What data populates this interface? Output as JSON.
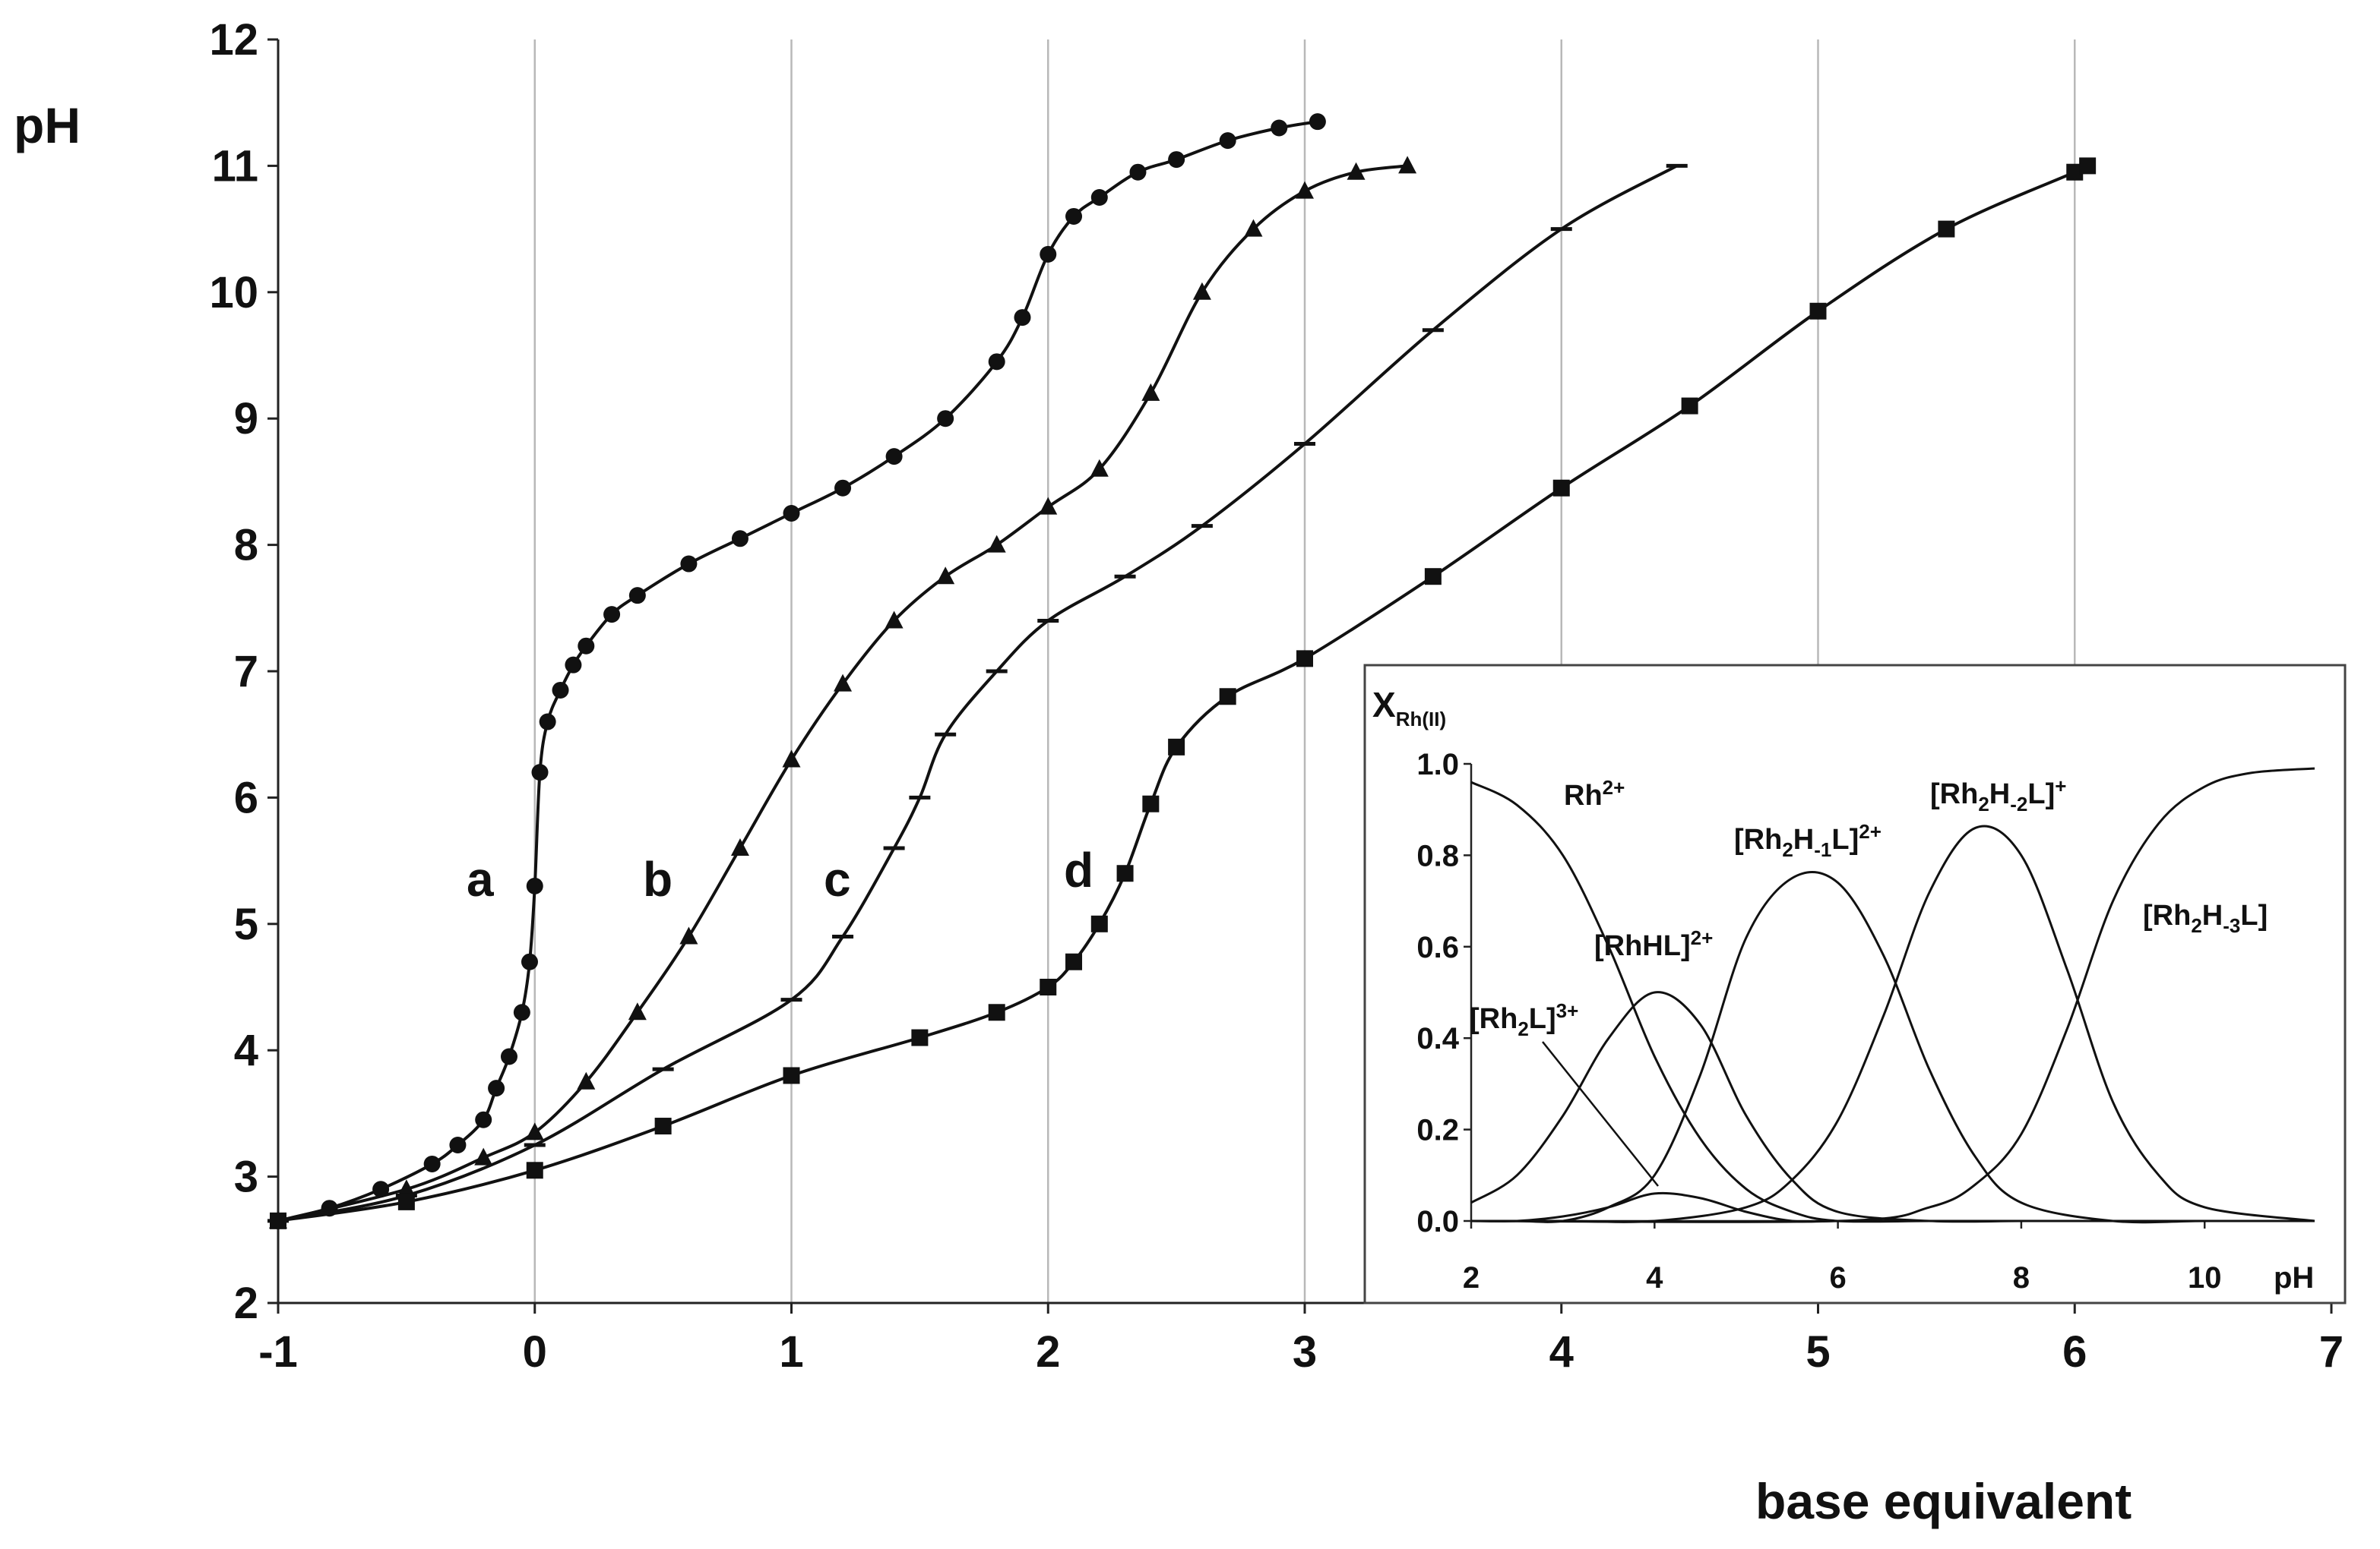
{
  "chart_data": [
    {
      "type": "line",
      "title": "",
      "xlabel": "base equivalent",
      "ylabel": "pH",
      "xlim": [
        -1,
        7
      ],
      "ylim": [
        2,
        12
      ],
      "x_ticks": [
        "-1",
        "0",
        "1",
        "2",
        "3",
        "4",
        "5",
        "6",
        "7"
      ],
      "y_ticks": [
        "2",
        "3",
        "4",
        "5",
        "6",
        "7",
        "8",
        "9",
        "10",
        "11",
        "12"
      ],
      "vertical_gridlines": [
        0,
        1,
        2,
        3,
        4,
        5,
        6
      ],
      "series": [
        {
          "name": "a",
          "marker": "circle",
          "x": [
            -1.0,
            -0.8,
            -0.6,
            -0.4,
            -0.3,
            -0.2,
            -0.15,
            -0.1,
            -0.05,
            -0.02,
            0.0,
            0.02,
            0.05,
            0.1,
            0.15,
            0.2,
            0.3,
            0.4,
            0.6,
            0.8,
            1.0,
            1.2,
            1.4,
            1.6,
            1.8,
            1.9,
            2.0,
            2.1,
            2.2,
            2.35,
            2.5,
            2.7,
            2.9,
            3.05
          ],
          "y": [
            2.65,
            2.75,
            2.9,
            3.1,
            3.25,
            3.45,
            3.7,
            3.95,
            4.3,
            4.7,
            5.3,
            6.2,
            6.6,
            6.85,
            7.05,
            7.2,
            7.45,
            7.6,
            7.85,
            8.05,
            8.25,
            8.45,
            8.7,
            9.0,
            9.45,
            9.8,
            10.3,
            10.6,
            10.75,
            10.95,
            11.05,
            11.2,
            11.3,
            11.35
          ]
        },
        {
          "name": "b",
          "marker": "triangle",
          "x": [
            -1.0,
            -0.5,
            -0.2,
            0.0,
            0.2,
            0.4,
            0.6,
            0.8,
            1.0,
            1.2,
            1.4,
            1.6,
            1.8,
            2.0,
            2.2,
            2.4,
            2.6,
            2.8,
            3.0,
            3.2,
            3.4
          ],
          "y": [
            2.65,
            2.9,
            3.15,
            3.35,
            3.75,
            4.3,
            4.9,
            5.6,
            6.3,
            6.9,
            7.4,
            7.75,
            8.0,
            8.3,
            8.6,
            9.2,
            10.0,
            10.5,
            10.8,
            10.95,
            11.0
          ]
        },
        {
          "name": "c",
          "marker": "dash",
          "x": [
            -1.0,
            -0.5,
            0.0,
            0.5,
            1.0,
            1.2,
            1.4,
            1.5,
            1.6,
            1.8,
            2.0,
            2.3,
            2.6,
            3.0,
            3.5,
            4.0,
            4.45
          ],
          "y": [
            2.65,
            2.85,
            3.25,
            3.85,
            4.4,
            4.9,
            5.6,
            6.0,
            6.5,
            7.0,
            7.4,
            7.75,
            8.15,
            8.8,
            9.7,
            10.5,
            11.0
          ]
        },
        {
          "name": "d",
          "marker": "square",
          "x": [
            -1.0,
            -0.5,
            0.0,
            0.5,
            1.0,
            1.5,
            1.8,
            2.0,
            2.1,
            2.2,
            2.3,
            2.4,
            2.5,
            2.7,
            3.0,
            3.5,
            4.0,
            4.5,
            5.0,
            5.5,
            6.0,
            6.05
          ],
          "y": [
            2.65,
            2.8,
            3.05,
            3.4,
            3.8,
            4.1,
            4.3,
            4.5,
            4.7,
            5.0,
            5.4,
            5.95,
            6.4,
            6.8,
            7.1,
            7.75,
            8.45,
            9.1,
            9.85,
            10.5,
            10.95,
            11.0
          ]
        }
      ],
      "curve_labels": [
        "a",
        "b",
        "c",
        "d"
      ]
    },
    {
      "type": "line",
      "title": "",
      "xlabel": "pH",
      "ylabel": "XRh(II)",
      "xlim": [
        2,
        11.2
      ],
      "ylim": [
        0,
        1.0
      ],
      "x_ticks": [
        "2",
        "4",
        "6",
        "8",
        "10"
      ],
      "y_ticks": [
        "0.0",
        "0.2",
        "0.4",
        "0.6",
        "0.8",
        "1.0"
      ],
      "series": [
        {
          "name": "Rh²⁺",
          "x": [
            2,
            2.5,
            3,
            3.5,
            4,
            4.5,
            5,
            5.5,
            6,
            7,
            8,
            9,
            10,
            11.2
          ],
          "y": [
            0.96,
            0.91,
            0.8,
            0.6,
            0.36,
            0.18,
            0.07,
            0.02,
            0.0,
            0.0,
            0.0,
            0.0,
            0.0,
            0.0
          ]
        },
        {
          "name": "[RhHL]²⁺",
          "x": [
            2,
            2.5,
            3,
            3.5,
            4,
            4.5,
            5,
            5.5,
            6,
            7,
            8,
            9,
            10,
            11.2
          ],
          "y": [
            0.04,
            0.1,
            0.23,
            0.4,
            0.5,
            0.43,
            0.23,
            0.09,
            0.02,
            0.0,
            0.0,
            0.0,
            0.0,
            0.0
          ]
        },
        {
          "name": "[Rh₂L]³⁺",
          "x": [
            2,
            2.5,
            3,
            3.5,
            4,
            4.5,
            5,
            5.5,
            6,
            7,
            8,
            9,
            10,
            11.2
          ],
          "y": [
            0.0,
            0.0,
            0.01,
            0.03,
            0.06,
            0.05,
            0.02,
            0.0,
            0.0,
            0.0,
            0.0,
            0.0,
            0.0,
            0.0
          ]
        },
        {
          "name": "[Rh₂H₋₁L]²⁺",
          "x": [
            2,
            2.5,
            3,
            3.5,
            4,
            4.5,
            5,
            5.5,
            6,
            6.5,
            7,
            7.5,
            8,
            9,
            10,
            11.2
          ],
          "y": [
            0.0,
            0.0,
            0.0,
            0.03,
            0.1,
            0.32,
            0.62,
            0.75,
            0.74,
            0.58,
            0.33,
            0.14,
            0.04,
            0.0,
            0.0,
            0.0
          ]
        },
        {
          "name": "[Rh₂H₋₂L]⁺",
          "x": [
            2,
            3,
            4,
            5,
            5.5,
            6,
            6.5,
            7,
            7.5,
            8,
            8.5,
            9,
            9.5,
            10,
            11.2
          ],
          "y": [
            0.0,
            0.0,
            0.0,
            0.03,
            0.09,
            0.22,
            0.45,
            0.72,
            0.86,
            0.8,
            0.55,
            0.26,
            0.1,
            0.03,
            0.0
          ]
        },
        {
          "name": "[Rh₂H₋₃L]",
          "x": [
            2,
            6,
            7,
            7.5,
            8,
            8.5,
            9,
            9.5,
            10,
            10.5,
            11.2
          ],
          "y": [
            0.0,
            0.0,
            0.03,
            0.08,
            0.19,
            0.42,
            0.7,
            0.87,
            0.95,
            0.98,
            0.99
          ]
        }
      ],
      "species_labels": {
        "rh": {
          "base": "Rh",
          "sup": "2+"
        },
        "rhhl": {
          "text": "[RhHL]",
          "sup": "2+"
        },
        "rh2l": {
          "pre": "[Rh",
          "sub1": "2",
          "post": "L]",
          "sup": "3+"
        },
        "h1": {
          "pre": "[Rh",
          "sub1": "2",
          "mid": "H",
          "sub2": "-1",
          "post": "L]",
          "sup": "2+"
        },
        "h2": {
          "pre": "[Rh",
          "sub1": "2",
          "mid": "H",
          "sub2": "-2",
          "post": "L]",
          "sup": "+"
        },
        "h3": {
          "pre": "[Rh",
          "sub1": "2",
          "mid": "H",
          "sub2": "-3",
          "post": "L]"
        }
      },
      "ylabel_parts": {
        "main": "X",
        "sub": "Rh(II)"
      }
    }
  ]
}
